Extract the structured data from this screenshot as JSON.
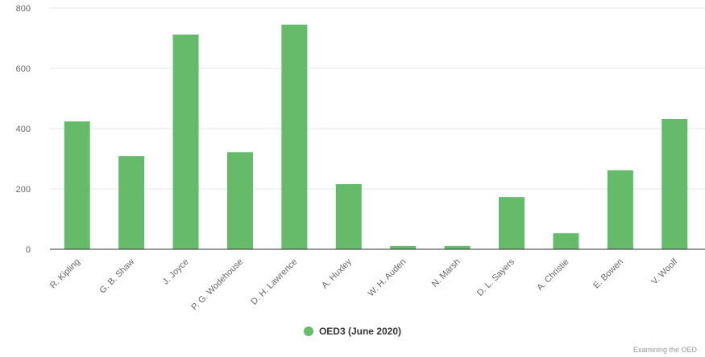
{
  "chart_data": {
    "type": "bar",
    "categories": [
      "R. Kipling",
      "G. B. Shaw",
      "J. Joyce",
      "P. G. Wodehouse",
      "D. H. Lawrence",
      "A. Huxley",
      "W. H. Auden",
      "N. Marsh",
      "D. L. Sayers",
      "A. Christie",
      "E. Bowen",
      "V. Woolf"
    ],
    "series": [
      {
        "name": "OED3 (June 2020)",
        "values": [
          424,
          309,
          712,
          322,
          745,
          216,
          11,
          11,
          173,
          53,
          262,
          432
        ]
      }
    ],
    "yticks": [
      0,
      200,
      400,
      600,
      800
    ],
    "ylim": [
      0,
      800
    ],
    "grid": true,
    "legend": "bottom",
    "bar_color": "#66bb6a",
    "credit": "Examining the OED"
  }
}
